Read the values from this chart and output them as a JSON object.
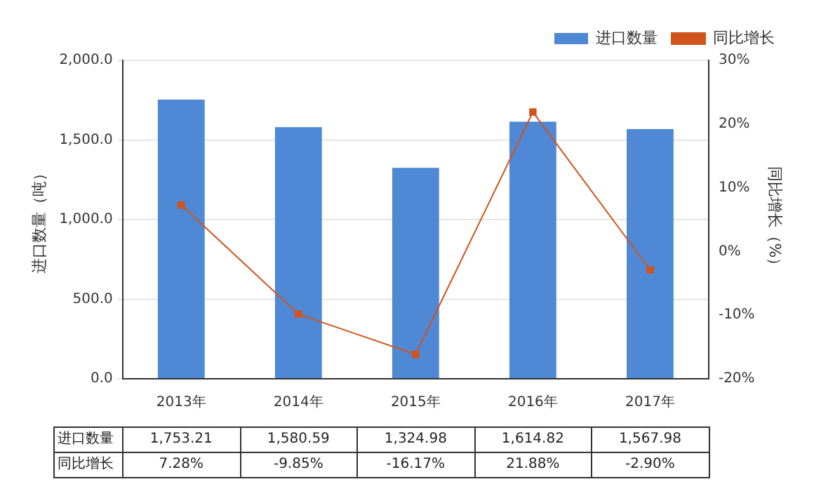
{
  "chart_data": {
    "type": "bar",
    "categories": [
      "2013年",
      "2014年",
      "2015年",
      "2016年",
      "2017年"
    ],
    "ylabel": "进口数量（吨）",
    "y2label": "同比增长（%）",
    "series": [
      {
        "name": "进口数量",
        "color": "#4f88d4",
        "values": [
          1753.21,
          1580.59,
          1324.98,
          1614.82,
          1567.98
        ],
        "value_labels": [
          "1,753.21",
          "1,580.59",
          "1,324.98",
          "1,614.82",
          "1,567.98"
        ]
      },
      {
        "name": "同比增长",
        "type": "line",
        "axis": "y2",
        "color": "#d0541c",
        "values": [
          7.28,
          -9.85,
          -16.17,
          21.88,
          -2.9
        ],
        "value_labels": [
          "7.28%",
          "-9.85%",
          "-16.17%",
          "21.88%",
          "-2.90%"
        ]
      }
    ],
    "ylim": [
      0,
      2000
    ],
    "yticks": [
      {
        "value": 0,
        "label": "0.0"
      },
      {
        "value": 500,
        "label": "500.0"
      },
      {
        "value": 1000,
        "label": "1,000.0"
      },
      {
        "value": 1500,
        "label": "1,500.0"
      },
      {
        "value": 2000,
        "label": "2,000.0"
      }
    ],
    "y2lim": [
      -20,
      30
    ],
    "y2ticks": [
      {
        "value": -20,
        "label": "-20%"
      },
      {
        "value": -10,
        "label": "-10%"
      },
      {
        "value": 0,
        "label": "0%"
      },
      {
        "value": 10,
        "label": "10%"
      },
      {
        "value": 20,
        "label": "20%"
      },
      {
        "value": 30,
        "label": "30%"
      }
    ],
    "grid": "y",
    "legend": "top right",
    "marker": "square",
    "line_style": "solid"
  }
}
